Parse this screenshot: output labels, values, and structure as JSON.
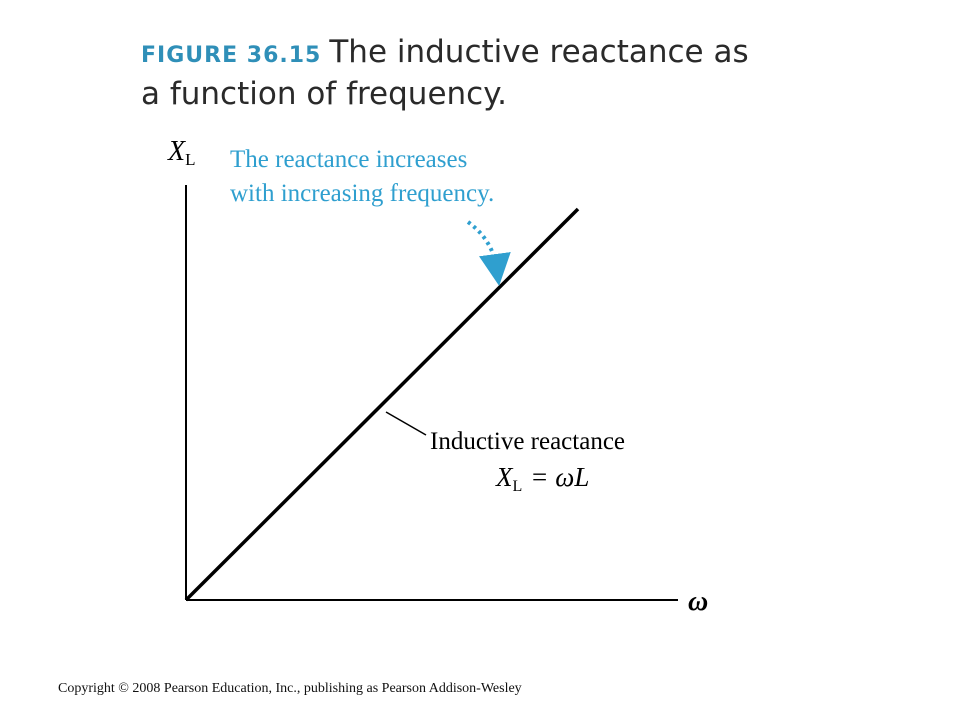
{
  "figure": {
    "label": "FIGURE 36.15",
    "caption": "The inductive reactance as a function of frequency."
  },
  "chart_data": {
    "type": "line",
    "ylabel_symbol": "X",
    "ylabel_subscript": "L",
    "xlabel": "ω",
    "series": [
      {
        "values": [
          [
            0,
            0
          ],
          [
            1,
            1
          ]
        ]
      }
    ],
    "annotations": {
      "trend_note_line1": "The reactance increases",
      "trend_note_line2": "with increasing frequency.",
      "line_label_line1": "Inductive reactance",
      "formula_symbol": "X",
      "formula_subscript": "L",
      "formula_rhs": "= ωL"
    },
    "grid": false,
    "colors": {
      "line": "#000000",
      "annotation": "#2f9fcf"
    }
  },
  "copyright": "Copyright © 2008 Pearson Education, Inc., publishing as Pearson Addison-Wesley"
}
